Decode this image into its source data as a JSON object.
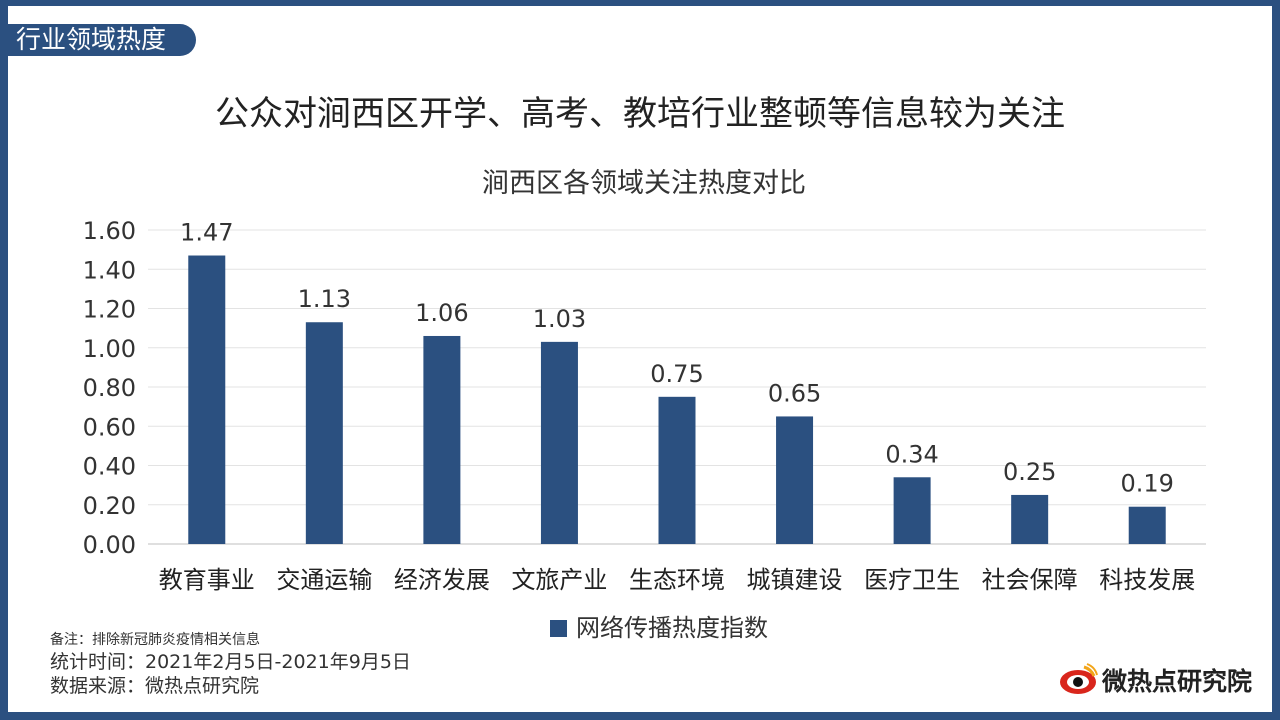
{
  "section_tab": "行业领域热度",
  "headline": "公众对涧西区开学、高考、教培行业整顿等信息较为关注",
  "chart_data": {
    "type": "bar",
    "title": "涧西区各领域关注热度对比",
    "categories": [
      "教育事业",
      "交通运输",
      "经济发展",
      "文旅产业",
      "生态环境",
      "城镇建设",
      "医疗卫生",
      "社会保障",
      "科技发展"
    ],
    "series": [
      {
        "name": "网络传播热度指数",
        "values": [
          1.47,
          1.13,
          1.06,
          1.03,
          0.75,
          0.65,
          0.34,
          0.25,
          0.19
        ]
      }
    ],
    "value_labels": [
      "1.47",
      "1.13",
      "1.06",
      "1.03",
      "0.75",
      "0.65",
      "0.34",
      "0.25",
      "0.19"
    ],
    "ylim": [
      0,
      1.6
    ],
    "yticks": [
      "0.00",
      "0.20",
      "0.40",
      "0.60",
      "0.80",
      "1.00",
      "1.20",
      "1.40",
      "1.60"
    ],
    "grid": true,
    "legend_position": "bottom-center",
    "bar_color": "#2b5080"
  },
  "notes": {
    "remark": "备注：排除新冠肺炎疫情相关信息",
    "period": "统计时间：2021年2月5日-2021年9月5日",
    "source": "数据来源：微热点研究院"
  },
  "brand": {
    "name": "微热点研究院",
    "icon": "eye-logo-icon",
    "accent": "#d9261c"
  }
}
